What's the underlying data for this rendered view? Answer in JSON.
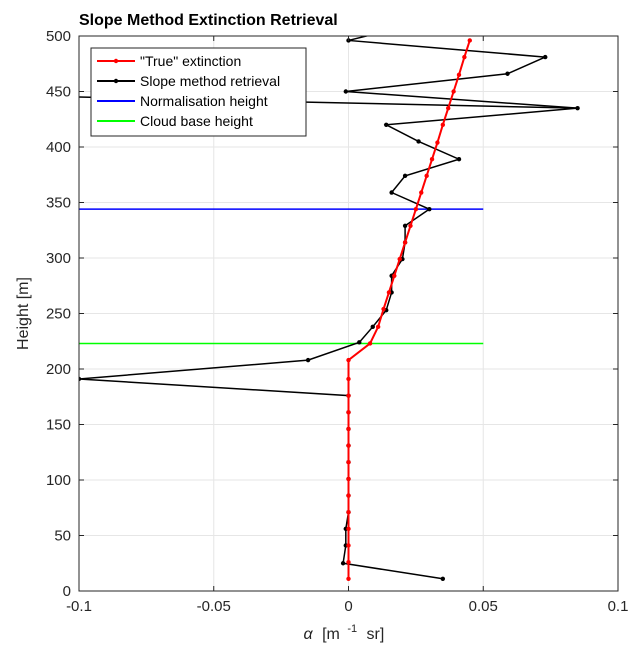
{
  "chart_data": {
    "type": "line",
    "title": "Slope Method Extinction Retrieval",
    "xlabel_symbol": "α",
    "xlabel_unit_prefix": "[m",
    "xlabel_unit_exp": "-1",
    "xlabel_unit_suffix": "sr]",
    "ylabel": "Height [m]",
    "xlim": [
      -0.1,
      0.1
    ],
    "ylim": [
      0,
      500
    ],
    "xticks": [
      -0.1,
      -0.05,
      0,
      0.05,
      0.1
    ],
    "xtick_labels": [
      "-0.1",
      "-0.05",
      "0",
      "0.05",
      "0.1"
    ],
    "yticks": [
      0,
      50,
      100,
      150,
      200,
      250,
      300,
      350,
      400,
      450,
      500
    ],
    "ytick_labels": [
      "0",
      "50",
      "100",
      "150",
      "200",
      "250",
      "300",
      "350",
      "400",
      "450",
      "500"
    ],
    "grid": true,
    "legend_position": "top-left",
    "series": [
      {
        "name": "\"True\" extinction",
        "color": "#ff0000",
        "marker": "dot",
        "x": [
          0,
          0,
          0,
          0,
          0,
          0,
          0,
          0,
          0,
          0,
          0,
          0,
          0,
          0,
          0.008,
          0.011,
          0.013,
          0.015,
          0.017,
          0.019,
          0.021,
          0.023,
          0.025,
          0.027,
          0.029,
          0.031,
          0.033,
          0.035,
          0.037,
          0.039,
          0.041,
          0.043,
          0.045
        ],
        "y": [
          11,
          26,
          41,
          56,
          71,
          86,
          101,
          116,
          131,
          146,
          161,
          176,
          191,
          208,
          223,
          238,
          254,
          269,
          284,
          299,
          314,
          329,
          344,
          359,
          374,
          389,
          404,
          420,
          435,
          450,
          465,
          481,
          496
        ]
      },
      {
        "name": "Slope method retrieval",
        "color": "#000000",
        "marker": "dot",
        "x": [
          0.035,
          -0.002,
          -0.001,
          -0.001,
          0,
          0,
          0,
          0,
          0,
          0,
          0,
          0,
          -0.1,
          -0.015,
          0.004,
          0.009,
          0.014,
          0.016,
          0.016,
          0.02,
          0.021,
          0.021,
          0.03,
          0.016,
          0.021,
          0.041,
          0.026,
          0.014,
          0.085,
          -0.001,
          0.059,
          0.073,
          0
        ],
        "y": [
          11,
          25,
          41,
          56,
          71,
          86,
          101,
          116,
          131,
          146,
          161,
          176,
          191,
          208,
          224,
          238,
          253,
          269,
          284,
          299,
          314,
          329,
          344,
          359,
          374,
          389,
          405,
          420,
          435,
          450,
          466,
          481,
          496
        ]
      },
      {
        "name": "Normalisation height",
        "color": "#0000ff",
        "marker": "none",
        "x": [
          -0.1,
          0.05
        ],
        "y": [
          344,
          344
        ]
      },
      {
        "name": "Cloud base height",
        "color": "#00ff00",
        "marker": "none",
        "x": [
          -0.1,
          0.05
        ],
        "y": [
          223,
          223
        ]
      }
    ],
    "extra_segment_note": "",
    "black_top_tail": {
      "x": [
        0,
        0.015
      ],
      "y": [
        496,
        505
      ]
    },
    "black_left_tail": {
      "x": [
        0.085,
        -0.1
      ],
      "y": [
        435,
        445
      ]
    }
  }
}
